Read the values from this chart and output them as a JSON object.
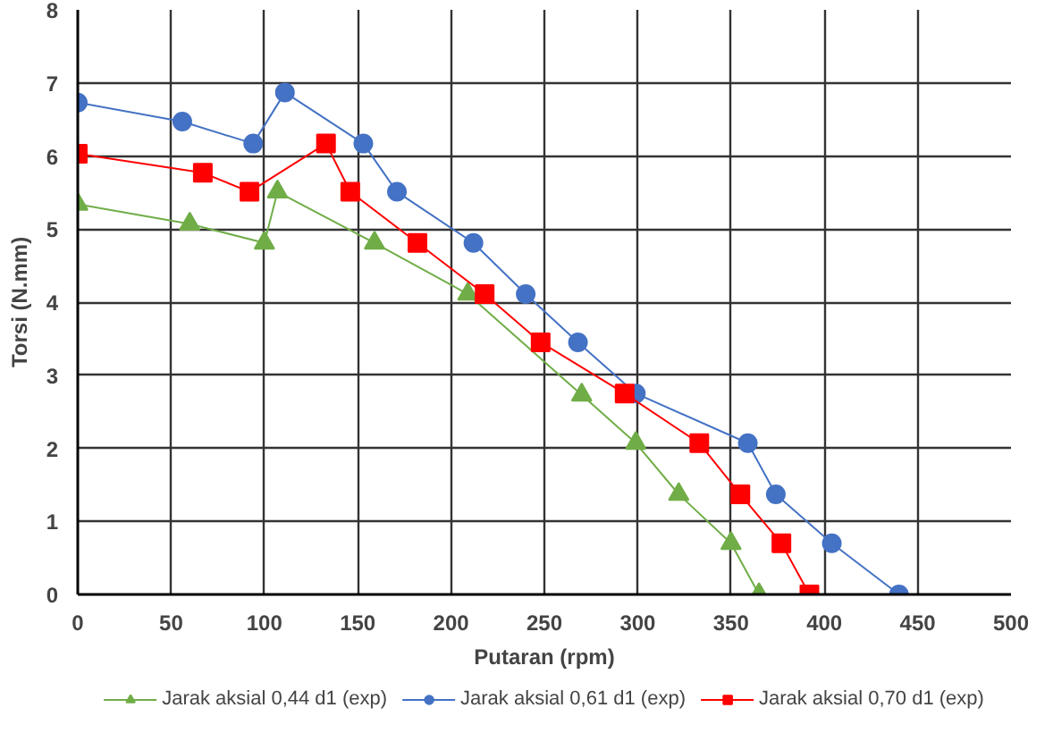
{
  "chart_data": {
    "type": "line",
    "xlabel": "Putaran (rpm)",
    "ylabel": "Torsi (N.mm)",
    "xlim": [
      0,
      500
    ],
    "ylim": [
      0,
      8
    ],
    "xticks": [
      0,
      50,
      100,
      150,
      200,
      250,
      300,
      350,
      400,
      450,
      500
    ],
    "yticks": [
      0,
      1,
      2,
      3,
      4,
      5,
      6,
      7,
      8
    ],
    "grid": true,
    "legend": "bottom",
    "series": [
      {
        "name": "Jarak aksial 0,44 d1 (exp)",
        "color": "#70ad47",
        "marker": "triangle",
        "x": [
          0,
          60,
          100,
          107,
          159,
          209,
          270,
          299,
          322,
          350,
          365
        ],
        "values": [
          5.34,
          5.07,
          4.81,
          5.51,
          4.81,
          4.11,
          2.73,
          2.07,
          1.37,
          0.7,
          0
        ]
      },
      {
        "name": "Jarak aksial 0,61 d1 (exp)",
        "color": "#4472c4",
        "marker": "circle",
        "x": [
          0,
          56,
          94,
          111,
          153,
          171,
          212,
          240,
          268,
          299,
          359,
          374,
          404,
          440
        ],
        "values": [
          6.73,
          6.47,
          6.17,
          6.87,
          6.17,
          5.51,
          4.81,
          4.11,
          3.45,
          2.75,
          2.07,
          1.37,
          0.7,
          0
        ]
      },
      {
        "name": "Jarak aksial 0,70 d1 (exp)",
        "color": "#ff0000",
        "marker": "square",
        "x": [
          0,
          67,
          92,
          133,
          146,
          182,
          218,
          248,
          293,
          333,
          355,
          377,
          392
        ],
        "values": [
          6.03,
          5.77,
          5.51,
          6.17,
          5.51,
          4.81,
          4.11,
          3.45,
          2.75,
          2.07,
          1.37,
          0.7,
          0
        ]
      }
    ]
  }
}
